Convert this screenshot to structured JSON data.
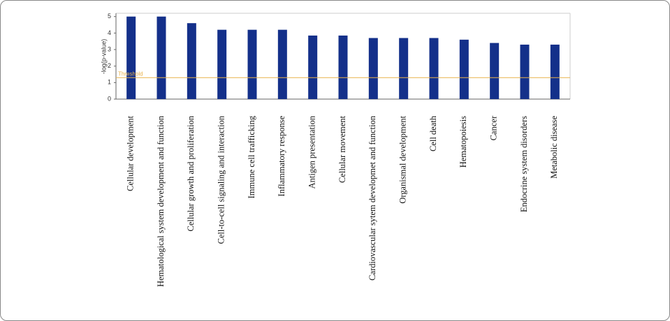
{
  "chart_data": {
    "type": "bar",
    "y_label": "-log(p-value)",
    "categories": [
      "Cellular development",
      "Hematological system development and function",
      "Cellular growth and proliferation",
      "Cell-to-cell signaling and interaction",
      "Immune cell trafficking",
      "Inflammatory response",
      "Antigen presentation",
      "Cellular movement",
      "Cardiovascular sytem developmet and function",
      "Organismal development",
      "Cell death",
      "Hematopoiesis",
      "Cancer",
      "Endocrine system disorders",
      "Metabolic disease"
    ],
    "values": [
      5.0,
      5.0,
      4.6,
      4.2,
      4.2,
      4.2,
      3.85,
      3.85,
      3.7,
      3.7,
      3.7,
      3.6,
      3.4,
      3.3,
      3.3
    ],
    "color": "#14308a",
    "ylim": [
      0,
      5.2
    ],
    "yticks": [
      0,
      1,
      2,
      3,
      4,
      5
    ],
    "threshold": 1.3,
    "threshold_label": "Threshold",
    "threshold_color": "#e8b24a",
    "grid": false
  }
}
